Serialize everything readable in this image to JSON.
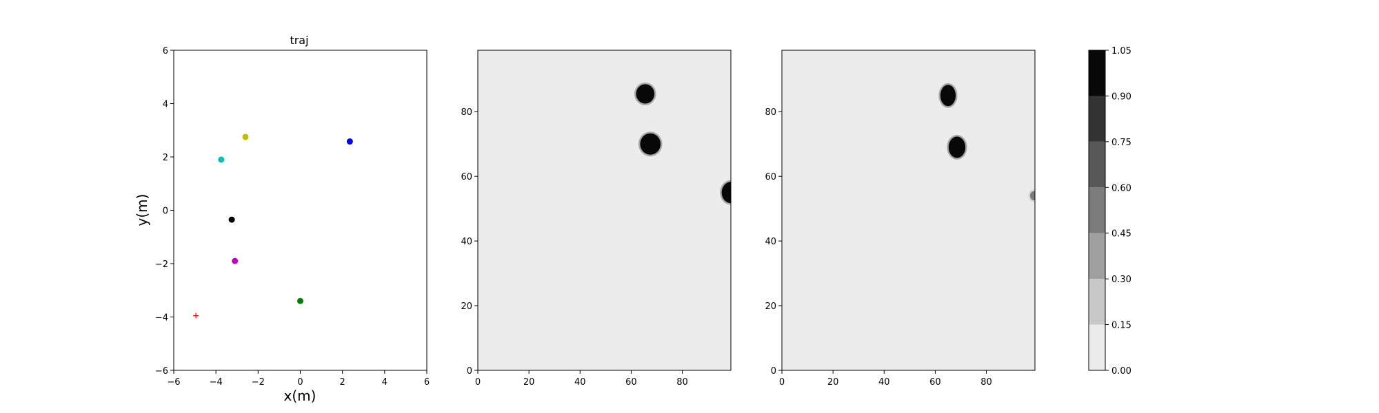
{
  "chart_data": [
    {
      "type": "scatter",
      "title": "traj",
      "xlabel": "x(m)",
      "ylabel": "y(m)",
      "xlim": [
        -6,
        6
      ],
      "ylim": [
        -6,
        6
      ],
      "xticks": [
        -6,
        -4,
        -2,
        0,
        2,
        4,
        6
      ],
      "yticks": [
        -6,
        -4,
        -2,
        0,
        2,
        4,
        6
      ],
      "grid": false,
      "points": [
        {
          "x": -2.6,
          "y": 2.75,
          "color": "#bfbf00",
          "marker": "circle"
        },
        {
          "x": 2.35,
          "y": 2.58,
          "color": "#0000ff",
          "marker": "circle"
        },
        {
          "x": -3.75,
          "y": 1.9,
          "color": "#00bfbf",
          "marker": "circle"
        },
        {
          "x": -3.25,
          "y": -0.35,
          "color": "#000000",
          "marker": "circle"
        },
        {
          "x": -3.1,
          "y": -1.9,
          "color": "#bf00bf",
          "marker": "circle"
        },
        {
          "x": 0.0,
          "y": -3.4,
          "color": "#008000",
          "marker": "circle"
        },
        {
          "x": -4.95,
          "y": -3.95,
          "color": "#ff0000",
          "marker": "plus"
        }
      ]
    },
    {
      "type": "heatmap",
      "xlim": [
        0,
        99
      ],
      "ylim": [
        0,
        99
      ],
      "xticks": [
        0,
        20,
        40,
        60,
        80
      ],
      "yticks": [
        0,
        20,
        40,
        60,
        80
      ],
      "background_value": 0.05,
      "blobs": [
        {
          "x": 65.5,
          "y": 85.5,
          "rx": 3.6,
          "ry": 3.0,
          "value": 1.0
        },
        {
          "x": 67.5,
          "y": 70.0,
          "rx": 4.0,
          "ry": 3.3,
          "value": 1.0
        },
        {
          "x": 99.0,
          "y": 55.0,
          "rx": 3.6,
          "ry": 3.3,
          "value": 1.0
        }
      ]
    },
    {
      "type": "heatmap",
      "xlim": [
        0,
        99
      ],
      "ylim": [
        0,
        99
      ],
      "xticks": [
        0,
        20,
        40,
        60,
        80
      ],
      "yticks": [
        0,
        20,
        40,
        60,
        80
      ],
      "background_value": 0.05,
      "blobs": [
        {
          "x": 65.0,
          "y": 85.0,
          "rx": 3.0,
          "ry": 3.3,
          "value": 1.0
        },
        {
          "x": 68.5,
          "y": 69.0,
          "rx": 3.3,
          "ry": 3.3,
          "value": 1.0
        },
        {
          "x": 98.5,
          "y": 54.0,
          "rx": 1.4,
          "ry": 1.4,
          "value": 0.45
        }
      ]
    }
  ],
  "colorbar": {
    "ticks": [
      "0.00",
      "0.15",
      "0.30",
      "0.45",
      "0.60",
      "0.75",
      "0.90",
      "1.05"
    ],
    "levels": [
      0.0,
      0.15,
      0.3,
      0.45,
      0.6,
      0.75,
      0.9,
      1.05
    ],
    "colors": [
      "#ececec",
      "#c8c8c8",
      "#a0a0a0",
      "#7c7c7c",
      "#585858",
      "#333333",
      "#080808"
    ]
  }
}
